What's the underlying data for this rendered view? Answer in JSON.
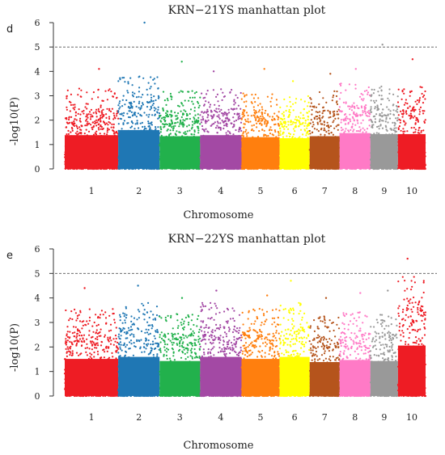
{
  "figure": {
    "background": "#ffffff"
  },
  "chart_data": [
    {
      "panel": "d",
      "type": "scatter",
      "title": "KRN−21YS manhattan plot",
      "xlabel": "Chromosome",
      "ylabel": "-log10(P)",
      "ylim": [
        0,
        6
      ],
      "yticks": [
        0,
        1,
        2,
        3,
        4,
        5,
        6
      ],
      "threshold": 5,
      "threshold_style": "dashed",
      "categories": [
        "1",
        "2",
        "3",
        "4",
        "5",
        "6",
        "7",
        "8",
        "9",
        "10"
      ],
      "colors": [
        "#ee1c24",
        "#1f77b4",
        "#22b14c",
        "#a349a4",
        "#ff7f0e",
        "#ffff00",
        "#b5541c",
        "#ff7ac6",
        "#999999",
        "#ee1c24"
      ],
      "peaks": [
        {
          "chromosome": "1",
          "max": 4.1,
          "typical_max": 3.3
        },
        {
          "chromosome": "2",
          "max": 6.0,
          "typical_max": 3.8
        },
        {
          "chromosome": "3",
          "max": 4.4,
          "typical_max": 3.2
        },
        {
          "chromosome": "4",
          "max": 4.0,
          "typical_max": 3.3
        },
        {
          "chromosome": "5",
          "max": 4.1,
          "typical_max": 3.1
        },
        {
          "chromosome": "6",
          "max": 3.6,
          "typical_max": 3.0
        },
        {
          "chromosome": "7",
          "max": 3.9,
          "typical_max": 3.2
        },
        {
          "chromosome": "8",
          "max": 4.1,
          "typical_max": 3.5
        },
        {
          "chromosome": "9",
          "max": 5.1,
          "typical_max": 3.4
        },
        {
          "chromosome": "10",
          "max": 4.5,
          "typical_max": 3.4
        }
      ]
    },
    {
      "panel": "e",
      "type": "scatter",
      "title": "KRN−22YS manhattan plot",
      "xlabel": "Chromosome",
      "ylabel": "-log10(P)",
      "ylim": [
        0,
        6
      ],
      "yticks": [
        0,
        1,
        2,
        3,
        4,
        5,
        6
      ],
      "threshold": 5,
      "threshold_style": "dashed",
      "categories": [
        "1",
        "2",
        "3",
        "4",
        "5",
        "6",
        "7",
        "8",
        "9",
        "10"
      ],
      "colors": [
        "#ee1c24",
        "#1f77b4",
        "#22b14c",
        "#a349a4",
        "#ff7f0e",
        "#ffff00",
        "#b5541c",
        "#ff7ac6",
        "#999999",
        "#ee1c24"
      ],
      "peaks": [
        {
          "chromosome": "1",
          "max": 4.4,
          "typical_max": 3.6
        },
        {
          "chromosome": "2",
          "max": 4.5,
          "typical_max": 3.8
        },
        {
          "chromosome": "3",
          "max": 4.0,
          "typical_max": 3.4
        },
        {
          "chromosome": "4",
          "max": 4.3,
          "typical_max": 3.8
        },
        {
          "chromosome": "5",
          "max": 4.1,
          "typical_max": 3.6
        },
        {
          "chromosome": "6",
          "max": 4.7,
          "typical_max": 3.8
        },
        {
          "chromosome": "7",
          "max": 4.0,
          "typical_max": 3.3
        },
        {
          "chromosome": "8",
          "max": 4.2,
          "typical_max": 3.5
        },
        {
          "chromosome": "9",
          "max": 4.3,
          "typical_max": 3.4
        },
        {
          "chromosome": "10",
          "max": 5.6,
          "typical_max": 4.9
        }
      ]
    }
  ]
}
